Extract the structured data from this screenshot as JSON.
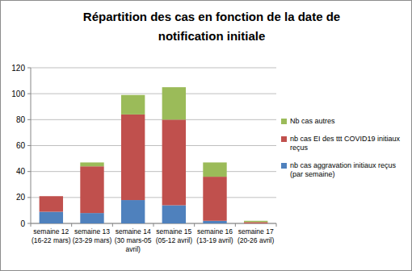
{
  "chart_data": {
    "type": "bar",
    "title": "Répartition des cas en fonction de la date de notification initiale",
    "categories": [
      "semaine 12 (16-22 mars)",
      "semaine 13 (23-29 mars)",
      "semaine 14 (30 mars-05 avril)",
      "semaine 15 (05-12 avril)",
      "semaine 16 (13-19 avril)",
      "semaine 17 (20-26 avril)"
    ],
    "series": [
      {
        "name": "nb cas aggravation initiaux reçus (par semaine)",
        "color": "#4f81bd",
        "values": [
          9,
          8,
          18,
          14,
          2,
          0
        ]
      },
      {
        "name": "nb cas EI des ttt COVID19 initiaux reçus",
        "color": "#c0504d",
        "values": [
          12,
          36,
          66,
          66,
          34,
          1
        ]
      },
      {
        "name": "Nb cas autres",
        "color": "#9bbb59",
        "values": [
          0,
          3,
          15,
          25,
          11,
          1
        ]
      }
    ],
    "ylim": [
      0,
      120
    ],
    "yticks": [
      0,
      20,
      40,
      60,
      80,
      100,
      120
    ],
    "grid": true,
    "stacked": true,
    "legend": "right"
  }
}
